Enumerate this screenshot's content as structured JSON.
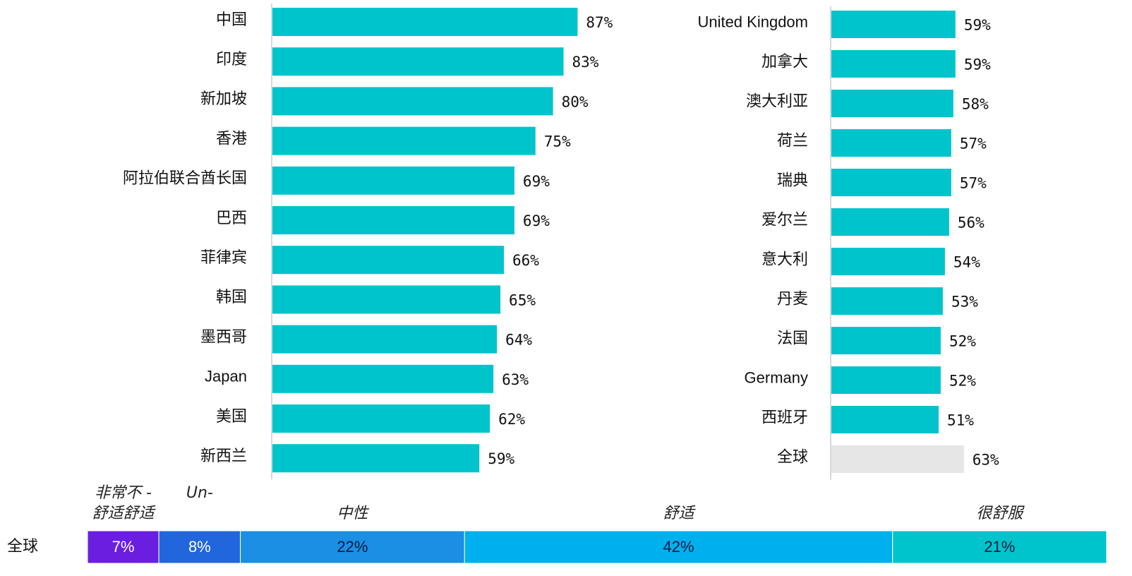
{
  "chart_data": [
    {
      "type": "hbar",
      "categories": [
        "中国",
        "印度",
        "新加坡",
        "香港",
        "阿拉伯联合酋长国",
        "巴西",
        "菲律宾",
        "韩国",
        "墨西哥",
        "Japan",
        "美国",
        "新西兰"
      ],
      "values": [
        87,
        83,
        80,
        75,
        69,
        69,
        66,
        65,
        64,
        63,
        62,
        59
      ],
      "value_labels": [
        "87%",
        "83%",
        "80%",
        "75%",
        "69%",
        "69%",
        "66%",
        "65%",
        "64%",
        "63%",
        "62%",
        "59%"
      ],
      "colors": [
        "#00c4cc",
        "#00c4cc",
        "#00c4cc",
        "#00c4cc",
        "#00c4cc",
        "#00c4cc",
        "#00c4cc",
        "#00c4cc",
        "#00c4cc",
        "#00c4cc",
        "#00c4cc",
        "#00c4cc"
      ],
      "xlim": [
        0,
        100
      ]
    },
    {
      "type": "hbar",
      "categories": [
        "United Kingdom",
        "加拿大",
        "澳大利亚",
        "荷兰",
        "瑞典",
        "爱尔兰",
        "意大利",
        "丹麦",
        "法国",
        "Germany",
        "西班牙",
        "全球"
      ],
      "values": [
        59,
        59,
        58,
        57,
        57,
        56,
        54,
        53,
        52,
        52,
        51,
        63
      ],
      "value_labels": [
        "59%",
        "59%",
        "58%",
        "57%",
        "57%",
        "56%",
        "54%",
        "53%",
        "52%",
        "52%",
        "51%",
        "63%"
      ],
      "colors": [
        "#00c4cc",
        "#00c4cc",
        "#00c4cc",
        "#00c4cc",
        "#00c4cc",
        "#00c4cc",
        "#00c4cc",
        "#00c4cc",
        "#00c4cc",
        "#00c4cc",
        "#00c4cc",
        "#e6e6e6"
      ],
      "xlim": [
        0,
        100
      ]
    },
    {
      "type": "stacked_hbar",
      "categories": [
        "全球"
      ],
      "series": [
        {
          "name": "非常不 -\n舒适舒适",
          "color": "#6a1fe0",
          "label_color": "#ffffff",
          "values": [
            7
          ],
          "value_labels": [
            "7%"
          ]
        },
        {
          "name": "Un-",
          "color": "#2266dd",
          "label_color": "#ffffff",
          "values": [
            8
          ],
          "value_labels": [
            "8%"
          ]
        },
        {
          "name": "中性",
          "color": "#1a8fe3",
          "label_color": "#0a1a40",
          "values": [
            22
          ],
          "value_labels": [
            "22%"
          ]
        },
        {
          "name": "舒适",
          "color": "#00b0ee",
          "label_color": "#0a1a40",
          "values": [
            42
          ],
          "value_labels": [
            "42%"
          ]
        },
        {
          "name": "很舒服",
          "color": "#00c4cc",
          "label_color": "#0a1a40",
          "values": [
            21
          ],
          "value_labels": [
            "21%"
          ]
        }
      ],
      "xlim": [
        0,
        100
      ]
    }
  ]
}
